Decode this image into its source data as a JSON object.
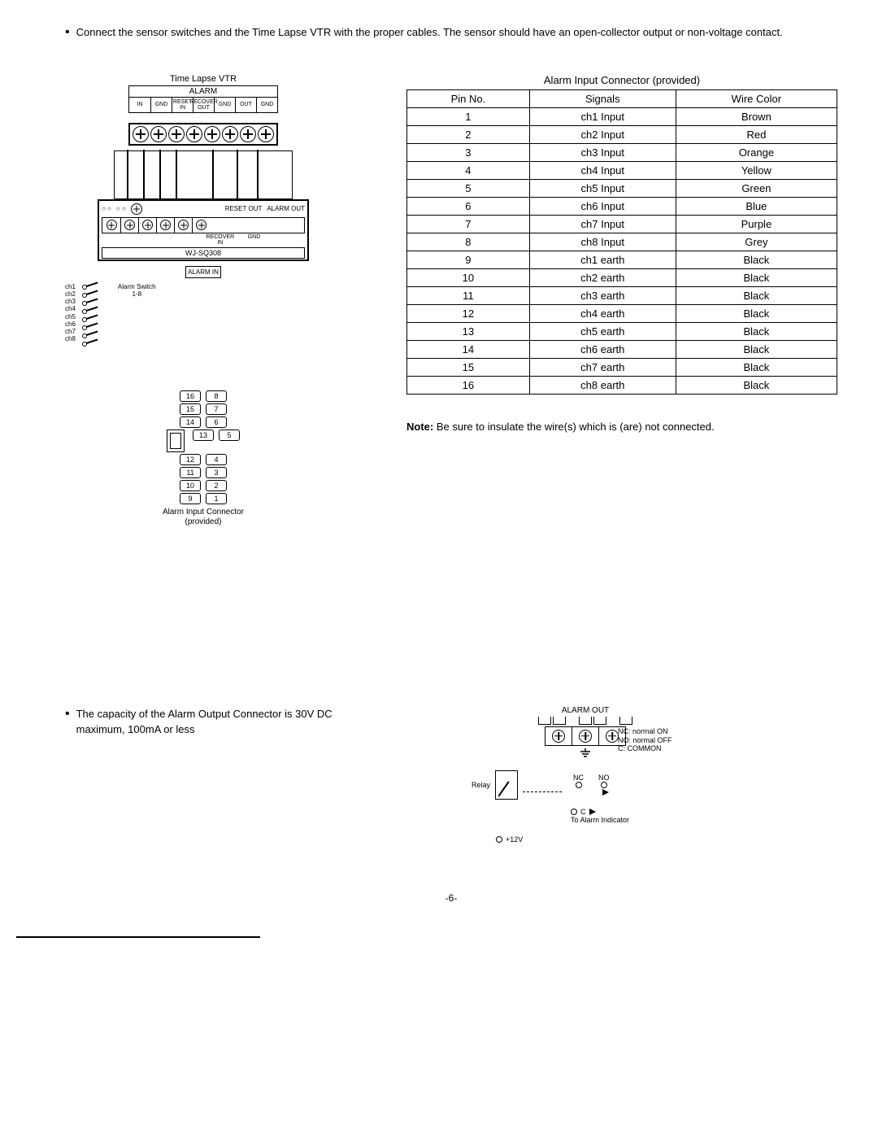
{
  "intro": {
    "text": "Connect the sensor switches and the Time Lapse VTR with the proper cables. The sensor should have an open-collector output or non-voltage contact."
  },
  "diagram": {
    "vtr_caption": "Time Lapse VTR",
    "alarm_label": "ALARM",
    "alarm_cells": [
      "IN",
      "GND",
      "RESET IN",
      "RECOVER OUT",
      "GND",
      "OUT",
      "GND"
    ],
    "reset_out": "RESET OUT",
    "alarm_out": "ALARM OUT",
    "recover_in": "RECOVER IN",
    "gnd": "GND",
    "model": "WJ-SQ308",
    "alarm_in": "ALARM IN",
    "channels": [
      "ch1",
      "ch2",
      "ch3",
      "ch4",
      "ch5",
      "ch6",
      "ch7",
      "ch8"
    ],
    "alarm_switch": "Alarm Switch",
    "switch_range": "1-8",
    "connector_caption1": "Alarm Input Connector",
    "connector_caption2": "(provided)",
    "pins_left": [
      "16",
      "15",
      "14",
      "13",
      "12",
      "11",
      "10",
      "9"
    ],
    "pins_right": [
      "8",
      "7",
      "6",
      "5",
      "4",
      "3",
      "2",
      "1"
    ]
  },
  "table": {
    "title": "Alarm Input Connector (provided)",
    "headers": [
      "Pin No.",
      "Signals",
      "Wire Color"
    ],
    "rows": [
      [
        "1",
        "ch1 Input",
        "Brown"
      ],
      [
        "2",
        "ch2 Input",
        "Red"
      ],
      [
        "3",
        "ch3 Input",
        "Orange"
      ],
      [
        "4",
        "ch4 Input",
        "Yellow"
      ],
      [
        "5",
        "ch5 Input",
        "Green"
      ],
      [
        "6",
        "ch6 Input",
        "Blue"
      ],
      [
        "7",
        "ch7 Input",
        "Purple"
      ],
      [
        "8",
        "ch8 Input",
        "Grey"
      ],
      [
        "9",
        "ch1 earth",
        "Black"
      ],
      [
        "10",
        "ch2 earth",
        "Black"
      ],
      [
        "11",
        "ch3 earth",
        "Black"
      ],
      [
        "12",
        "ch4 earth",
        "Black"
      ],
      [
        "13",
        "ch5 earth",
        "Black"
      ],
      [
        "14",
        "ch6 earth",
        "Black"
      ],
      [
        "15",
        "ch7 earth",
        "Black"
      ],
      [
        "16",
        "ch8 earth",
        "Black"
      ]
    ]
  },
  "note": {
    "label": "Note:",
    "text": "Be sure to insulate the wire(s) which is (are) not connected."
  },
  "lower": {
    "bullet": "The capacity of the Alarm Output Connector is 30V DC maximum, 100mA or less",
    "alarm_out_title": "ALARM OUT",
    "legend_nc": "NC: normal ON",
    "legend_no": "NO: normal OFF",
    "legend_c": "C: COMMON",
    "relay": "Relay",
    "nc": "NC",
    "no": "NO",
    "c": "C",
    "to_indicator": "To Alarm Indicator",
    "plus12": "+12V"
  },
  "page": "-6-"
}
